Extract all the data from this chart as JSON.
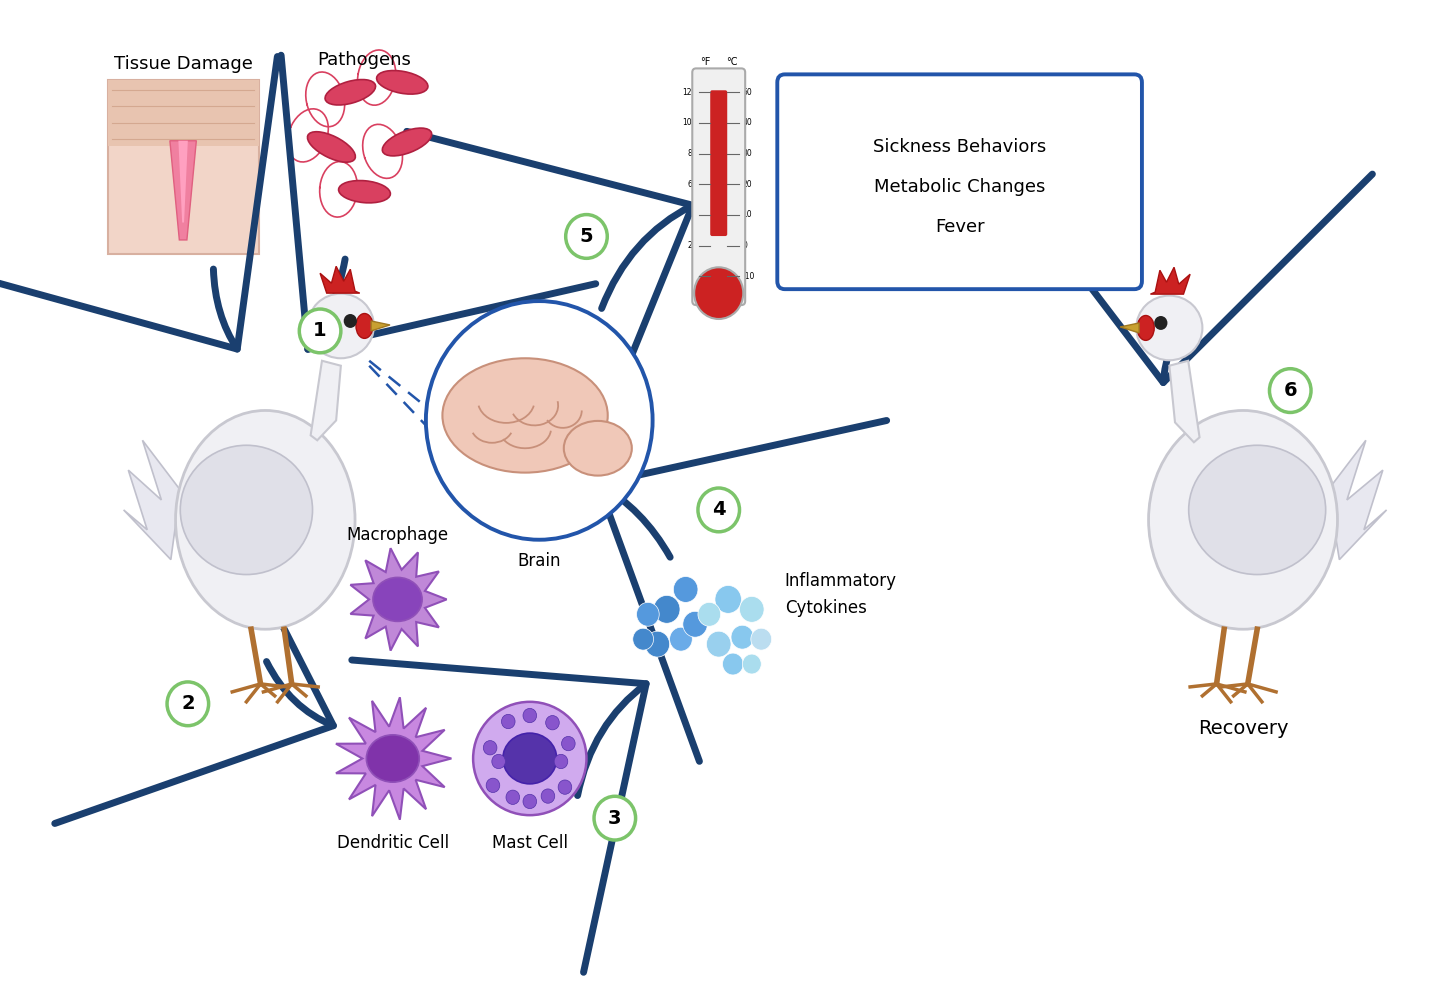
{
  "bg_color": "#ffffff",
  "arrow_color": "#1a3f6f",
  "number_circle_color": "#ffffff",
  "number_circle_edge": "#7cc46a",
  "number_text_color": "#000000",
  "labels": {
    "tissue_damage": "Tissue Damage",
    "pathogens": "Pathogens",
    "macrophage": "Macrophage",
    "dendritic_cell": "Dendritic Cell",
    "mast_cell": "Mast Cell",
    "inflammatory_cytokines": "Inflammatory\nCytokines",
    "brain": "Brain",
    "sickness_line1": "Sickness Behaviors",
    "sickness_line2": "Metabolic Changes",
    "sickness_line3": "Fever",
    "recovery": "Recovery"
  },
  "figsize": [
    14.3,
    9.86
  ],
  "dpi": 100
}
